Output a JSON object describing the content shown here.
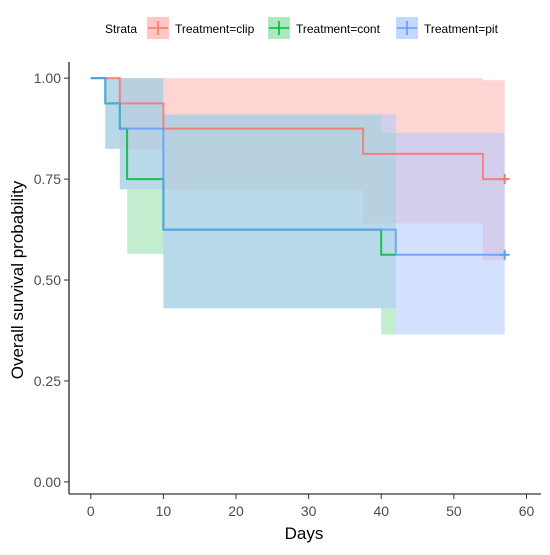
{
  "chart_data": {
    "type": "step",
    "xlabel": "Days",
    "ylabel": "Overall survival probability",
    "xlim": [
      -3,
      62
    ],
    "ylim": [
      -0.03,
      1.04
    ],
    "x_ticks": [
      0,
      10,
      20,
      30,
      40,
      50,
      60
    ],
    "y_ticks": [
      0.0,
      0.25,
      0.5,
      0.75,
      1.0
    ],
    "x_tick_labels": [
      "0",
      "10",
      "20",
      "30",
      "40",
      "50",
      "60"
    ],
    "y_tick_labels": [
      "0.00",
      "0.25",
      "0.50",
      "0.75",
      "1.00"
    ],
    "grid": false,
    "legend": {
      "title": "Strata",
      "placement": "top"
    },
    "series": [
      {
        "name": "Treatment=clip",
        "color": "#F8766D",
        "band_color": "#FFB3B0",
        "censor_x": 57,
        "censor_y": 0.75,
        "steps": [
          {
            "x": 0,
            "y": 1.0,
            "lower": 1.0,
            "upper": 1.0
          },
          {
            "x": 4,
            "y": 0.9375,
            "lower": 0.825,
            "upper": 1.0
          },
          {
            "x": 10,
            "y": 0.875,
            "lower": 0.725,
            "upper": 1.0
          },
          {
            "x": 37.5,
            "y": 0.8125,
            "lower": 0.64,
            "upper": 1.0
          },
          {
            "x": 54,
            "y": 0.75,
            "lower": 0.55,
            "upper": 0.995
          },
          {
            "x": 57,
            "y": 0.75,
            "lower": 0.55,
            "upper": 0.995
          }
        ]
      },
      {
        "name": "Treatment=cont",
        "color": "#00BA38",
        "band_color": "#8FE0A8",
        "censor_x": null,
        "censor_y": null,
        "steps": [
          {
            "x": 0,
            "y": 1.0,
            "lower": 1.0,
            "upper": 1.0
          },
          {
            "x": 2,
            "y": 0.9375,
            "lower": 0.825,
            "upper": 1.0
          },
          {
            "x": 4,
            "y": 0.875,
            "lower": 0.725,
            "upper": 1.0
          },
          {
            "x": 5,
            "y": 0.75,
            "lower": 0.565,
            "upper": 1.0
          },
          {
            "x": 10,
            "y": 0.625,
            "lower": 0.43,
            "upper": 0.91
          },
          {
            "x": 40,
            "y": 0.5625,
            "lower": 0.365,
            "upper": 0.865
          },
          {
            "x": 42,
            "y": 0.5625,
            "lower": 0.365,
            "upper": 0.865
          }
        ]
      },
      {
        "name": "Treatment=pit",
        "color": "#619CFF",
        "band_color": "#AFC9FF",
        "censor_x": 57,
        "censor_y": 0.5625,
        "steps": [
          {
            "x": 0,
            "y": 1.0,
            "lower": 1.0,
            "upper": 1.0
          },
          {
            "x": 2,
            "y": 0.9375,
            "lower": 0.825,
            "upper": 1.0
          },
          {
            "x": 4,
            "y": 0.875,
            "lower": 0.725,
            "upper": 1.0
          },
          {
            "x": 10,
            "y": 0.625,
            "lower": 0.43,
            "upper": 0.91
          },
          {
            "x": 42,
            "y": 0.5625,
            "lower": 0.365,
            "upper": 0.865
          },
          {
            "x": 57,
            "y": 0.5625,
            "lower": 0.365,
            "upper": 0.865
          }
        ]
      }
    ]
  }
}
